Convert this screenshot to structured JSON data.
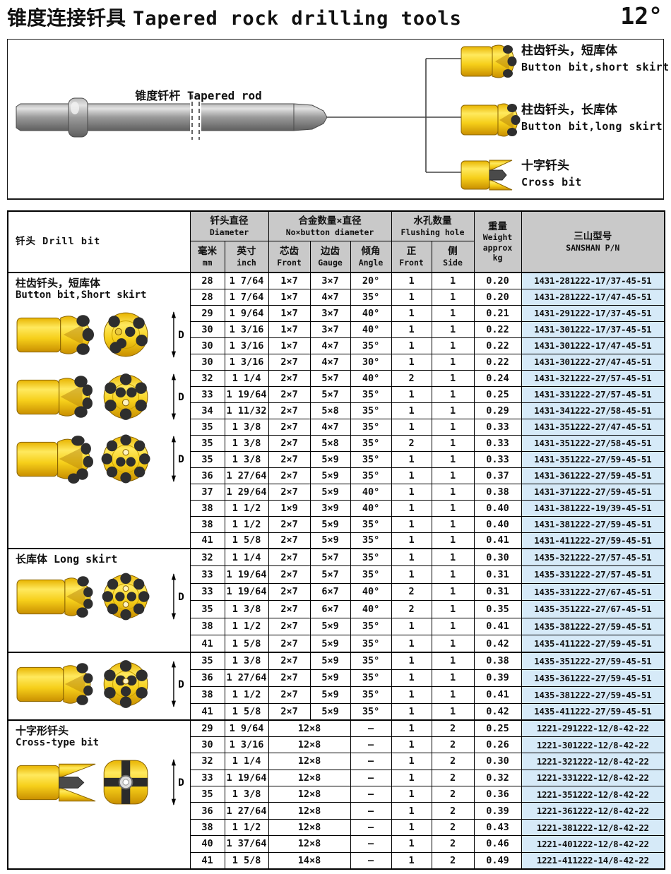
{
  "page": {
    "title_zh": "锥度连接钎具",
    "title_en": "Tapered rock drilling tools",
    "taper_angle": "12°"
  },
  "diagram": {
    "rod_label": "锥度钎杆 Tapered rod",
    "bits": [
      {
        "label_zh": "柱齿钎头，短库体",
        "label_en": "Button bit,short skirt"
      },
      {
        "label_zh": "柱齿钎头，长库体",
        "label_en": "Button bit,long skirt"
      },
      {
        "label_zh": "十字钎头",
        "label_en": "Cross bit"
      }
    ]
  },
  "table": {
    "title": "钎头 Drill bit",
    "headers": {
      "diameter": {
        "zh": "钎头直径",
        "en": "Diameter"
      },
      "buttons": {
        "zh": "合金数量×直径",
        "en": "No×button diameter"
      },
      "flushing": {
        "zh": "水孔数量",
        "en": "Flushing hole"
      },
      "weight": {
        "zh": "重量",
        "en": "Weight",
        "line3": "approx",
        "line4": "kg"
      },
      "pn": {
        "zh": "三山型号",
        "en": "SANSHAN P/N"
      },
      "sub": {
        "mm_zh": "毫米",
        "mm_en": "mm",
        "inch_zh": "英寸",
        "inch_en": "inch",
        "front_zh": "芯齿",
        "front_en": "Front",
        "gauge_zh": "边齿",
        "gauge_en": "Gauge",
        "angle_zh": "倾角",
        "angle_en": "Angle",
        "hfront_zh": "正",
        "hfront_en": "Front",
        "hside_zh": "侧",
        "hside_en": "Side"
      }
    },
    "sections": [
      {
        "label_zh": "柱齿钎头，短库体",
        "label_en": "Button bit,Short skirt",
        "arts": [
          "button-short-4",
          "button-short-6",
          "button-short-8"
        ],
        "merged": false,
        "rows": [
          [
            "28",
            "1 7/64",
            "1×7",
            "3×7",
            "20°",
            "1",
            "1",
            "0.20",
            "1431-281222-17/37-45-51"
          ],
          [
            "28",
            "1 7/64",
            "1×7",
            "4×7",
            "35°",
            "1",
            "1",
            "0.20",
            "1431-281222-17/47-45-51"
          ],
          [
            "29",
            "1 9/64",
            "1×7",
            "3×7",
            "40°",
            "1",
            "1",
            "0.21",
            "1431-291222-17/37-45-51"
          ],
          [
            "30",
            "1 3/16",
            "1×7",
            "3×7",
            "40°",
            "1",
            "1",
            "0.22",
            "1431-301222-17/37-45-51"
          ],
          [
            "30",
            "1 3/16",
            "1×7",
            "4×7",
            "35°",
            "1",
            "1",
            "0.22",
            "1431-301222-17/47-45-51"
          ],
          [
            "30",
            "1 3/16",
            "2×7",
            "4×7",
            "30°",
            "1",
            "1",
            "0.22",
            "1431-301222-27/47-45-51"
          ],
          [
            "32",
            "1 1/4",
            "2×7",
            "5×7",
            "40°",
            "2",
            "1",
            "0.24",
            "1431-321222-27/57-45-51"
          ],
          [
            "33",
            "1 19/64",
            "2×7",
            "5×7",
            "35°",
            "1",
            "1",
            "0.25",
            "1431-331222-27/57-45-51"
          ],
          [
            "34",
            "1 11/32",
            "2×7",
            "5×8",
            "35°",
            "1",
            "1",
            "0.29",
            "1431-341222-27/58-45-51"
          ],
          [
            "35",
            "1 3/8",
            "2×7",
            "4×7",
            "35°",
            "1",
            "1",
            "0.33",
            "1431-351222-27/47-45-51"
          ],
          [
            "35",
            "1 3/8",
            "2×7",
            "5×8",
            "35°",
            "2",
            "1",
            "0.33",
            "1431-351222-27/58-45-51"
          ],
          [
            "35",
            "1 3/8",
            "2×7",
            "5×9",
            "35°",
            "1",
            "1",
            "0.33",
            "1431-351222-27/59-45-51"
          ],
          [
            "36",
            "1 27/64",
            "2×7",
            "5×9",
            "35°",
            "1",
            "1",
            "0.37",
            "1431-361222-27/59-45-51"
          ],
          [
            "37",
            "1 29/64",
            "2×7",
            "5×9",
            "40°",
            "1",
            "1",
            "0.38",
            "1431-371222-27/59-45-51"
          ],
          [
            "38",
            "1 1/2",
            "1×9",
            "3×9",
            "40°",
            "1",
            "1",
            "0.40",
            "1431-381222-19/39-45-51"
          ],
          [
            "38",
            "1 1/2",
            "2×7",
            "5×9",
            "35°",
            "1",
            "1",
            "0.40",
            "1431-381222-27/59-45-51"
          ],
          [
            "41",
            "1 5/8",
            "2×7",
            "5×9",
            "35°",
            "1",
            "1",
            "0.41",
            "1431-411222-27/59-45-51"
          ]
        ]
      },
      {
        "label_zh": "长库体 Long skirt",
        "label_en": "",
        "arts": [
          "button-long-8"
        ],
        "merged": false,
        "rows": [
          [
            "32",
            "1 1/4",
            "2×7",
            "5×7",
            "35°",
            "1",
            "1",
            "0.30",
            "1435-321222-27/57-45-51"
          ],
          [
            "33",
            "1 19/64",
            "2×7",
            "5×7",
            "35°",
            "1",
            "1",
            "0.31",
            "1435-331222-27/57-45-51"
          ],
          [
            "33",
            "1 19/64",
            "2×7",
            "6×7",
            "40°",
            "2",
            "1",
            "0.31",
            "1435-331222-27/67-45-51"
          ],
          [
            "35",
            "1 3/8",
            "2×7",
            "6×7",
            "40°",
            "2",
            "1",
            "0.35",
            "1435-351222-27/67-45-51"
          ],
          [
            "38",
            "1 1/2",
            "2×7",
            "5×9",
            "35°",
            "1",
            "1",
            "0.41",
            "1435-381222-27/59-45-51"
          ],
          [
            "41",
            "1 5/8",
            "2×7",
            "5×9",
            "35°",
            "1",
            "1",
            "0.42",
            "1435-411222-27/59-45-51"
          ]
        ]
      },
      {
        "label_zh": "",
        "label_en": "",
        "arts": [
          "button-long-6"
        ],
        "merged": false,
        "rows": [
          [
            "35",
            "1 3/8",
            "2×7",
            "5×9",
            "35°",
            "1",
            "1",
            "0.38",
            "1435-351222-27/59-45-51"
          ],
          [
            "36",
            "1 27/64",
            "2×7",
            "5×9",
            "35°",
            "1",
            "1",
            "0.39",
            "1435-361222-27/59-45-51"
          ],
          [
            "38",
            "1 1/2",
            "2×7",
            "5×9",
            "35°",
            "1",
            "1",
            "0.41",
            "1435-381222-27/59-45-51"
          ],
          [
            "41",
            "1 5/8",
            "2×7",
            "5×9",
            "35°",
            "1",
            "1",
            "0.42",
            "1435-411222-27/59-45-51"
          ]
        ]
      },
      {
        "label_zh": "十字形钎头",
        "label_en": "Cross-type bit",
        "arts": [
          "cross"
        ],
        "merged": true,
        "rows": [
          [
            "29",
            "1 9/64",
            "12×8",
            "–",
            "1",
            "2",
            "0.25",
            "1221-291222-12/8-42-22"
          ],
          [
            "30",
            "1 3/16",
            "12×8",
            "–",
            "1",
            "2",
            "0.26",
            "1221-301222-12/8-42-22"
          ],
          [
            "32",
            "1 1/4",
            "12×8",
            "–",
            "1",
            "2",
            "0.30",
            "1221-321222-12/8-42-22"
          ],
          [
            "33",
            "1 19/64",
            "12×8",
            "–",
            "1",
            "2",
            "0.32",
            "1221-331222-12/8-42-22"
          ],
          [
            "35",
            "1 3/8",
            "12×8",
            "–",
            "1",
            "2",
            "0.36",
            "1221-351222-12/8-42-22"
          ],
          [
            "36",
            "1 27/64",
            "12×8",
            "–",
            "1",
            "2",
            "0.39",
            "1221-361222-12/8-42-22"
          ],
          [
            "38",
            "1 1/2",
            "12×8",
            "–",
            "1",
            "2",
            "0.43",
            "1221-381222-12/8-42-22"
          ],
          [
            "40",
            "1 37/64",
            "12×8",
            "–",
            "1",
            "2",
            "0.46",
            "1221-401222-12/8-42-22"
          ],
          [
            "41",
            "1 5/8",
            "14×8",
            "–",
            "1",
            "2",
            "0.49",
            "1221-411222-14/8-42-22"
          ]
        ]
      }
    ]
  },
  "colors": {
    "header_bg": "#c9c9c9",
    "pn_bg": "#d6eaf8",
    "bit_yellow": "#f6cf1a",
    "bit_yellow_dark": "#c98f00",
    "rod_gray": "#9a9a9a",
    "text": "#111111"
  }
}
